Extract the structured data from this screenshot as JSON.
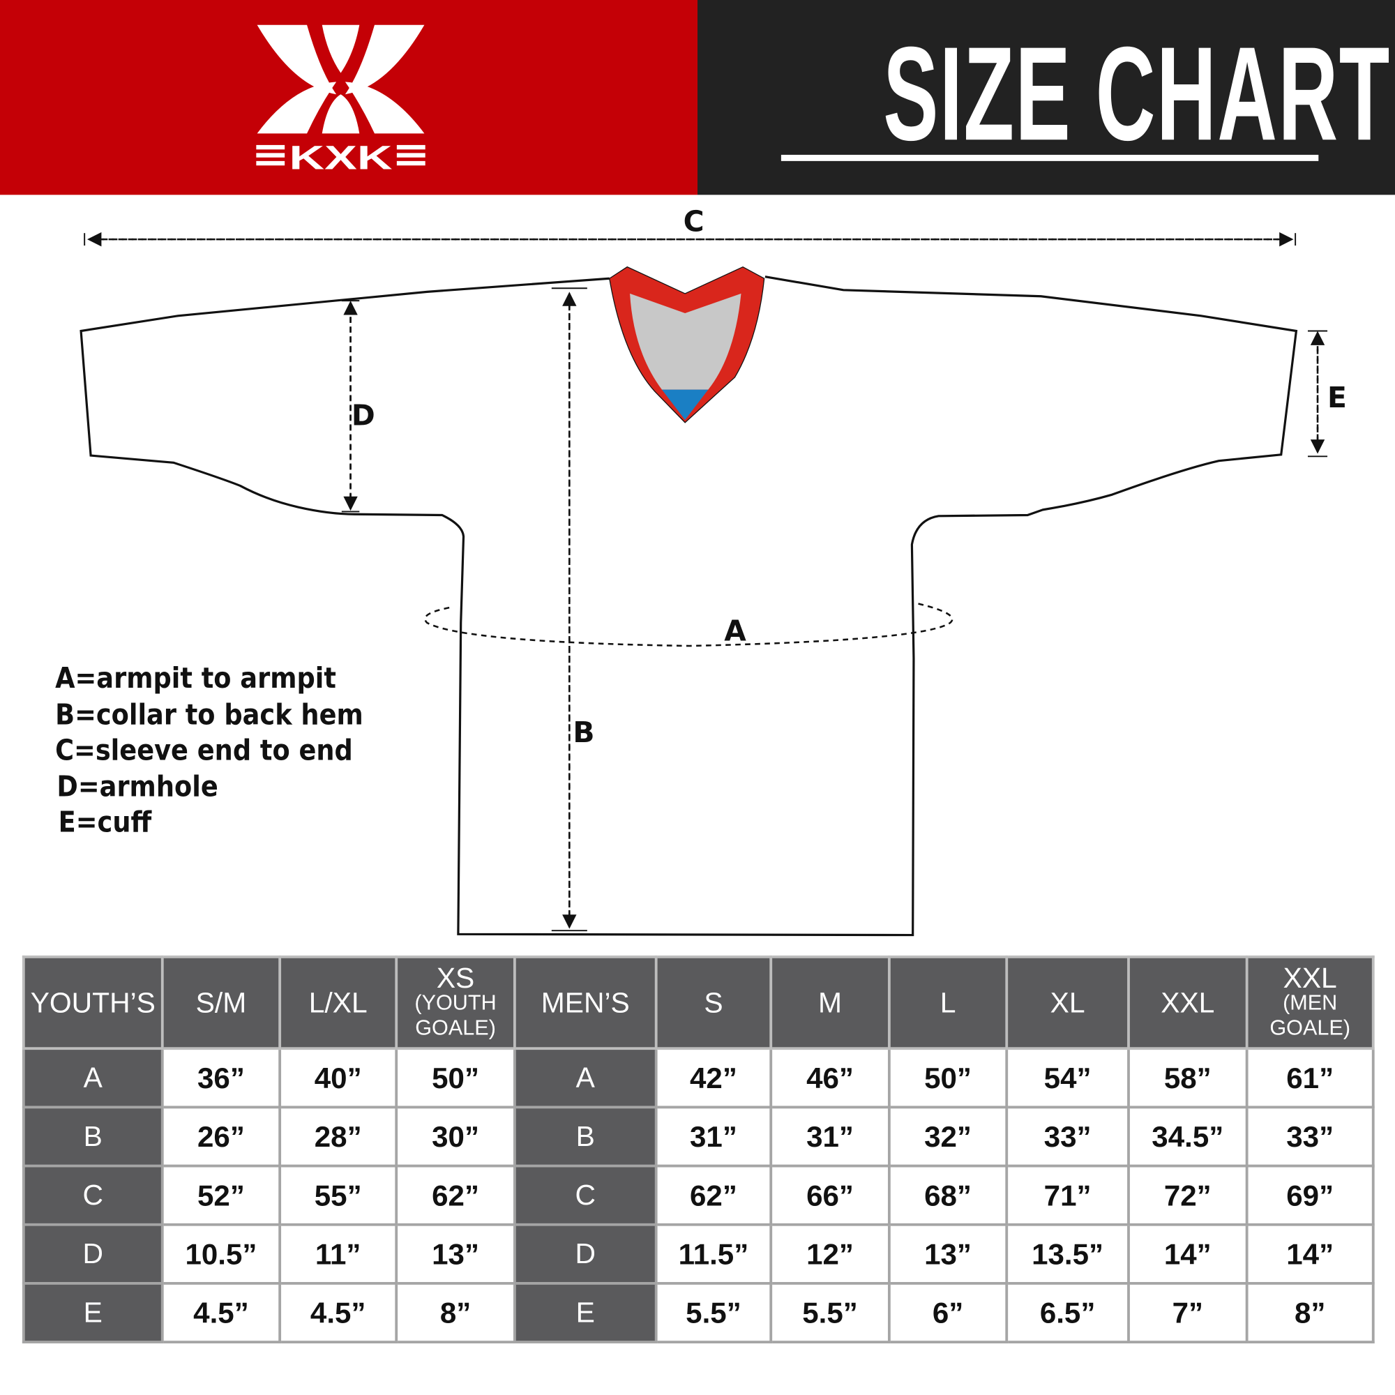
{
  "header": {
    "title": "SIZE CHART",
    "logo_text": "KXK",
    "brand_colors": {
      "red": "#c40006",
      "dark": "#222222"
    }
  },
  "diagram": {
    "labels": {
      "A": "A",
      "B": "B",
      "C": "C",
      "D": "D",
      "E": "E"
    },
    "collar_colors": {
      "trim": "#d9261c",
      "inner": "#c8c8c8",
      "tag": "#1a7fc4"
    }
  },
  "legend": [
    "A=armpit to armpit",
    "B=collar to back hem",
    "C=sleeve end to end",
    "D=armhole",
    "E=cuff"
  ],
  "table": {
    "youth_header": "YOUTH’S",
    "youth_sizes": [
      {
        "main": "S/M",
        "sub": ""
      },
      {
        "main": "L/XL",
        "sub": ""
      },
      {
        "main": "XS",
        "sub": "(YOUTH GOALE)"
      }
    ],
    "men_header": "MEN’S",
    "men_sizes": [
      {
        "main": "S",
        "sub": ""
      },
      {
        "main": "M",
        "sub": ""
      },
      {
        "main": "L",
        "sub": ""
      },
      {
        "main": "XL",
        "sub": ""
      },
      {
        "main": "XXL",
        "sub": ""
      },
      {
        "main": "XXL",
        "sub": "(MEN GOALE)"
      }
    ],
    "rows": [
      {
        "label": "A",
        "youth": [
          "36”",
          "40”",
          "50”"
        ],
        "men": [
          "42”",
          "46”",
          "50”",
          "54”",
          "58”",
          "61”"
        ]
      },
      {
        "label": "B",
        "youth": [
          "26”",
          "28”",
          "30”"
        ],
        "men": [
          "31”",
          "31”",
          "32”",
          "33”",
          "34.5”",
          "33”"
        ]
      },
      {
        "label": "C",
        "youth": [
          "52”",
          "55”",
          "62”"
        ],
        "men": [
          "62”",
          "66”",
          "68”",
          "71”",
          "72”",
          "69”"
        ]
      },
      {
        "label": "D",
        "youth": [
          "10.5”",
          "11”",
          "13”"
        ],
        "men": [
          "11.5”",
          "12”",
          "13”",
          "13.5”",
          "14”",
          "14”"
        ]
      },
      {
        "label": "E",
        "youth": [
          "4.5”",
          "4.5”",
          "8”"
        ],
        "men": [
          "5.5”",
          "5.5”",
          "6”",
          "6.5”",
          "7”",
          "8”"
        ]
      }
    ]
  }
}
